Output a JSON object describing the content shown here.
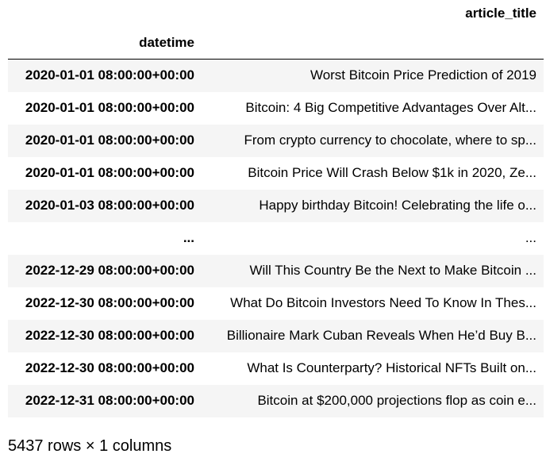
{
  "table": {
    "column_header": "article_title",
    "index_name": "datetime",
    "rows": [
      {
        "index": "2020-01-01 08:00:00+00:00",
        "value": "Worst Bitcoin Price Prediction of 2019"
      },
      {
        "index": "2020-01-01 08:00:00+00:00",
        "value": "Bitcoin: 4 Big Competitive Advantages Over Alt..."
      },
      {
        "index": "2020-01-01 08:00:00+00:00",
        "value": "From crypto currency to chocolate, where to sp..."
      },
      {
        "index": "2020-01-01 08:00:00+00:00",
        "value": "Bitcoin Price Will Crash Below $1k in 2020, Ze..."
      },
      {
        "index": "2020-01-03 08:00:00+00:00",
        "value": "Happy birthday Bitcoin! Celebrating the life o..."
      },
      {
        "index": "...",
        "value": "..."
      },
      {
        "index": "2022-12-29 08:00:00+00:00",
        "value": "Will This Country Be the Next to Make Bitcoin ..."
      },
      {
        "index": "2022-12-30 08:00:00+00:00",
        "value": "What Do Bitcoin Investors Need To Know In Thes..."
      },
      {
        "index": "2022-12-30 08:00:00+00:00",
        "value": "Billionaire Mark Cuban Reveals When He’d Buy B..."
      },
      {
        "index": "2022-12-30 08:00:00+00:00",
        "value": "What Is Counterparty? Historical NFTs Built on..."
      },
      {
        "index": "2022-12-31 08:00:00+00:00",
        "value": "Bitcoin at $200,000 projections flop as coin e..."
      }
    ]
  },
  "shape_text": "5437 rows × 1 columns"
}
